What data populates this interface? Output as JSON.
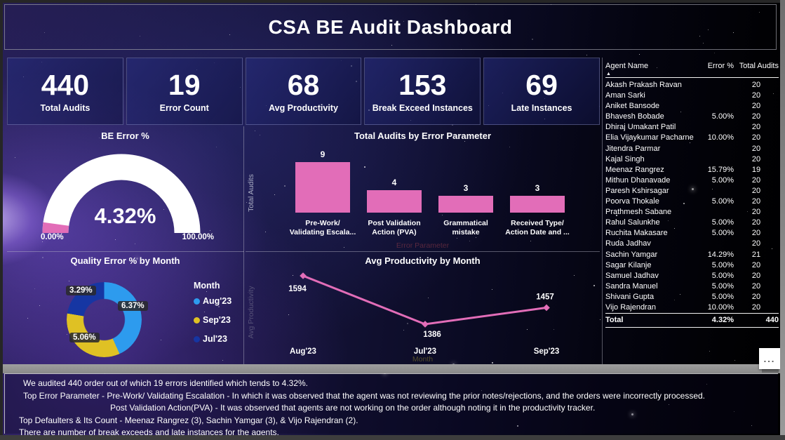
{
  "header": {
    "title": "CSA BE Audit Dashboard"
  },
  "colors": {
    "pink": "#e26db8",
    "gauge_track": "#ffffff",
    "donut_aug": "#2d9bee",
    "donut_sep": "#dfc124",
    "donut_jul": "#1636a3"
  },
  "kpis": [
    {
      "value": "440",
      "label": "Total Audits"
    },
    {
      "value": "19",
      "label": "Error Count"
    },
    {
      "value": "68",
      "label": "Avg Productivity"
    },
    {
      "value": "153",
      "label": "Break Exceed Instances"
    },
    {
      "value": "69",
      "label": "Late Instances"
    }
  ],
  "gauge": {
    "title": "BE Error %",
    "value": "4.32%",
    "percent": 4.32,
    "min_label": "0.00%",
    "max_label": "100.00%"
  },
  "bar_chart": {
    "title": "Total Audits by Error Parameter",
    "y_axis_label": "Total Audits",
    "x_axis_label": "Error Parameter",
    "bars": [
      {
        "category": "Pre-Work/\nValidating Escala...",
        "value": 9
      },
      {
        "category": "Post Validation\nAction (PVA)",
        "value": 4
      },
      {
        "category": "Grammatical\nmistake",
        "value": 3
      },
      {
        "category": "Received Type/\nAction Date and ...",
        "value": 3
      }
    ]
  },
  "donut_chart": {
    "title": "Quality Error % by Month",
    "legend_title": "Month",
    "slices": [
      {
        "label": "Aug'23",
        "value": 6.37,
        "display": "6.37%",
        "color": "#2d9bee"
      },
      {
        "label": "Sep'23",
        "value": 5.06,
        "display": "5.06%",
        "color": "#dfc124"
      },
      {
        "label": "Jul'23",
        "value": 3.29,
        "display": "3.29%",
        "color": "#1636a3"
      }
    ]
  },
  "line_chart": {
    "title": "Avg Productivity by Month",
    "y_axis_label": "Avg Productivity",
    "x_axis_label": "Month",
    "points": [
      {
        "label": "Aug'23",
        "value": 1594
      },
      {
        "label": "Jul'23",
        "value": 1386
      },
      {
        "label": "Sep'23",
        "value": 1457
      }
    ]
  },
  "agent_table": {
    "columns": [
      "Agent Name",
      "Error %",
      "Total Audits"
    ],
    "rows": [
      {
        "name": "Akash Prakash Ravan",
        "error": "",
        "audits": "20"
      },
      {
        "name": "Aman Sarki",
        "error": "",
        "audits": "20"
      },
      {
        "name": "Aniket Bansode",
        "error": "",
        "audits": "20"
      },
      {
        "name": "Bhavesh Bobade",
        "error": "5.00%",
        "audits": "20"
      },
      {
        "name": "Dhiraj Umakant Patil",
        "error": "",
        "audits": "20"
      },
      {
        "name": "Elia Vijaykumar Pacharne",
        "error": "10.00%",
        "audits": "20"
      },
      {
        "name": "Jitendra Parmar",
        "error": "",
        "audits": "20"
      },
      {
        "name": "Kajal Singh",
        "error": "",
        "audits": "20"
      },
      {
        "name": "Meenaz Rangrez",
        "error": "15.79%",
        "audits": "19"
      },
      {
        "name": "Mithun Dhanavade",
        "error": "5.00%",
        "audits": "20"
      },
      {
        "name": "Paresh Kshirsagar",
        "error": "",
        "audits": "20"
      },
      {
        "name": "Poorva Thokale",
        "error": "5.00%",
        "audits": "20"
      },
      {
        "name": "Prathmesh Sabane",
        "error": "",
        "audits": "20"
      },
      {
        "name": "Rahul Salunkhe",
        "error": "5.00%",
        "audits": "20"
      },
      {
        "name": "Ruchita Makasare",
        "error": "5.00%",
        "audits": "20"
      },
      {
        "name": "Ruda Jadhav",
        "error": "",
        "audits": "20"
      },
      {
        "name": "Sachin Yamgar",
        "error": "14.29%",
        "audits": "21"
      },
      {
        "name": "Sagar Kilanje",
        "error": "5.00%",
        "audits": "20"
      },
      {
        "name": "Samuel Jadhav",
        "error": "5.00%",
        "audits": "20"
      },
      {
        "name": "Sandra Manuel",
        "error": "5.00%",
        "audits": "20"
      },
      {
        "name": "Shivani Gupta",
        "error": "5.00%",
        "audits": "20"
      },
      {
        "name": "Vijo Rajendran",
        "error": "10.00%",
        "audits": "20"
      }
    ],
    "total": {
      "name": "Total",
      "error": "4.32%",
      "audits": "440"
    }
  },
  "footer": {
    "lines": [
      "We audited 440 order out of which 19 errors identified which tends to 4.32%.",
      "Top Error Parameter - Pre-Work/ Validating Escalation - In which it was observed that the agent was not reviewing the prior notes/rejections, and the orders were incorrectly processed.",
      "Post Validation Action(PVA) - It was observed that agents are not working on the order although noting it in the productivity tracker.",
      "Top Defaulters & Its Count - Meenaz Rangrez (3), Sachin Yamgar (3), & Vijo Rajendran (2).",
      "There are number of break exceeds and late instances for the agents."
    ]
  },
  "more_options": "...",
  "chart_data": [
    {
      "type": "gauge",
      "title": "BE Error %",
      "value": 4.32,
      "min": 0,
      "max": 100,
      "unit": "%"
    },
    {
      "type": "bar",
      "title": "Total Audits by Error Parameter",
      "categories": [
        "Pre-Work/ Validating Escala...",
        "Post Validation Action (PVA)",
        "Grammatical mistake",
        "Received Type/ Action Date and ..."
      ],
      "values": [
        9,
        4,
        3,
        3
      ],
      "xlabel": "Error Parameter",
      "ylabel": "Total Audits",
      "ylim": [
        0,
        9
      ]
    },
    {
      "type": "pie",
      "title": "Quality Error % by Month",
      "categories": [
        "Aug'23",
        "Sep'23",
        "Jul'23"
      ],
      "values": [
        6.37,
        5.06,
        3.29
      ],
      "unit": "%",
      "legend_title": "Month",
      "legend_position": "right"
    },
    {
      "type": "line",
      "title": "Avg Productivity by Month",
      "categories": [
        "Aug'23",
        "Jul'23",
        "Sep'23"
      ],
      "values": [
        1594,
        1386,
        1457
      ],
      "xlabel": "Month",
      "ylabel": "Avg Productivity"
    }
  ]
}
